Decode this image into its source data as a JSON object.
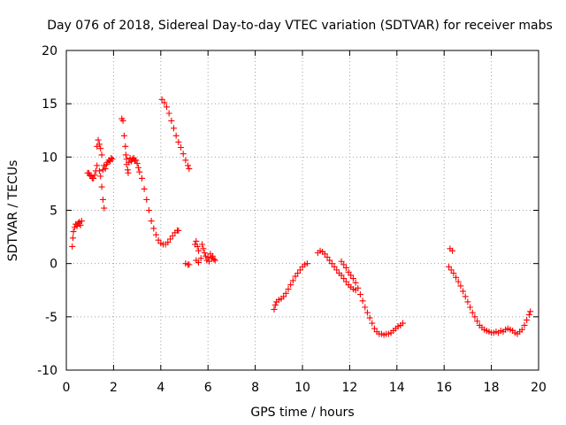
{
  "chart_data": {
    "type": "scatter",
    "title": "Day 076 of 2018, Sidereal Day-to-day VTEC variation (SDTVAR) for receiver mabs",
    "xlabel": "GPS time / hours",
    "ylabel": "SDTVAR / TECUs",
    "xlim": [
      0,
      20
    ],
    "ylim": [
      -10,
      20
    ],
    "xticks": [
      0,
      2,
      4,
      6,
      8,
      10,
      12,
      14,
      16,
      18,
      20
    ],
    "yticks": [
      -10,
      -5,
      0,
      5,
      10,
      15,
      20
    ],
    "grid": true,
    "marker": "+",
    "color": "#ff0000",
    "series": [
      {
        "name": "seg1",
        "points": [
          [
            0.25,
            1.6
          ],
          [
            0.28,
            2.4
          ],
          [
            0.3,
            3.0
          ],
          [
            0.35,
            3.4
          ],
          [
            0.4,
            3.7
          ],
          [
            0.45,
            3.5
          ],
          [
            0.5,
            3.8
          ],
          [
            0.55,
            3.9
          ],
          [
            0.6,
            3.6
          ],
          [
            0.65,
            4.0
          ]
        ]
      },
      {
        "name": "seg2",
        "points": [
          [
            0.9,
            8.5
          ],
          [
            0.95,
            8.5
          ],
          [
            1.0,
            8.3
          ],
          [
            1.05,
            8.2
          ],
          [
            1.1,
            8.0
          ],
          [
            1.15,
            8.0
          ],
          [
            1.2,
            8.3
          ],
          [
            1.25,
            8.7
          ],
          [
            1.3,
            9.2
          ],
          [
            1.3,
            11.0
          ],
          [
            1.35,
            11.6
          ],
          [
            1.4,
            11.2
          ],
          [
            1.45,
            10.8
          ],
          [
            1.5,
            10.2
          ],
          [
            1.4,
            8.7
          ],
          [
            1.45,
            8.2
          ],
          [
            1.5,
            7.2
          ],
          [
            1.55,
            6.0
          ],
          [
            1.6,
            5.2
          ],
          [
            1.55,
            8.8
          ],
          [
            1.6,
            9.2
          ],
          [
            1.65,
            8.9
          ],
          [
            1.7,
            9.3
          ],
          [
            1.75,
            9.5
          ],
          [
            1.8,
            9.7
          ],
          [
            1.85,
            9.6
          ],
          [
            1.9,
            9.9
          ],
          [
            1.95,
            9.8
          ]
        ]
      },
      {
        "name": "seg3",
        "points": [
          [
            2.35,
            13.6
          ],
          [
            2.4,
            13.4
          ],
          [
            2.45,
            12.0
          ],
          [
            2.5,
            11.0
          ],
          [
            2.52,
            10.2
          ],
          [
            2.55,
            9.3
          ],
          [
            2.6,
            8.8
          ],
          [
            2.62,
            8.5
          ],
          [
            2.55,
            9.8
          ],
          [
            2.65,
            9.5
          ],
          [
            2.7,
            9.9
          ],
          [
            2.75,
            9.6
          ],
          [
            2.8,
            9.8
          ],
          [
            2.85,
            9.9
          ],
          [
            2.9,
            9.7
          ],
          [
            2.95,
            9.7
          ],
          [
            3.0,
            9.4
          ],
          [
            3.05,
            9.0
          ],
          [
            3.1,
            8.6
          ],
          [
            3.2,
            8.0
          ],
          [
            3.3,
            7.0
          ],
          [
            3.4,
            6.0
          ],
          [
            3.5,
            5.0
          ],
          [
            3.6,
            4.0
          ],
          [
            3.7,
            3.3
          ],
          [
            3.8,
            2.7
          ],
          [
            3.9,
            2.2
          ],
          [
            4.0,
            1.9
          ],
          [
            4.1,
            1.8
          ],
          [
            4.2,
            1.8
          ],
          [
            4.3,
            2.0
          ],
          [
            4.4,
            2.3
          ],
          [
            4.5,
            2.6
          ],
          [
            4.6,
            2.9
          ],
          [
            4.7,
            3.1
          ],
          [
            4.75,
            3.1
          ]
        ]
      },
      {
        "name": "seg4",
        "points": [
          [
            4.05,
            15.4
          ],
          [
            4.15,
            15.1
          ],
          [
            4.25,
            14.7
          ],
          [
            4.35,
            14.1
          ],
          [
            4.45,
            13.4
          ],
          [
            4.55,
            12.7
          ],
          [
            4.65,
            12.0
          ],
          [
            4.75,
            11.4
          ],
          [
            4.85,
            10.9
          ],
          [
            4.95,
            10.3
          ],
          [
            5.05,
            9.7
          ],
          [
            5.15,
            9.2
          ],
          [
            5.2,
            8.9
          ]
        ]
      },
      {
        "name": "seg5",
        "points": [
          [
            5.05,
            0.0
          ],
          [
            5.15,
            -0.1
          ],
          [
            5.2,
            -0.1
          ],
          [
            5.45,
            1.8
          ],
          [
            5.5,
            2.1
          ],
          [
            5.55,
            1.6
          ],
          [
            5.6,
            1.2
          ],
          [
            5.5,
            0.3
          ],
          [
            5.6,
            0.1
          ],
          [
            5.7,
            0.5
          ],
          [
            5.75,
            1.8
          ],
          [
            5.8,
            1.4
          ],
          [
            5.85,
            1.0
          ],
          [
            5.9,
            0.7
          ],
          [
            5.95,
            0.3
          ],
          [
            6.0,
            0.6
          ],
          [
            6.05,
            0.2
          ],
          [
            6.1,
            0.9
          ],
          [
            6.15,
            0.5
          ],
          [
            6.2,
            0.7
          ],
          [
            6.25,
            0.4
          ],
          [
            6.3,
            0.3
          ]
        ]
      },
      {
        "name": "seg6",
        "points": [
          [
            8.8,
            -4.3
          ],
          [
            8.85,
            -3.9
          ],
          [
            8.9,
            -3.6
          ],
          [
            9.0,
            -3.4
          ],
          [
            9.1,
            -3.3
          ],
          [
            9.2,
            -3.1
          ],
          [
            9.3,
            -2.8
          ],
          [
            9.4,
            -2.4
          ],
          [
            9.5,
            -2.0
          ],
          [
            9.6,
            -1.6
          ],
          [
            9.7,
            -1.2
          ],
          [
            9.8,
            -0.9
          ],
          [
            9.9,
            -0.6
          ],
          [
            10.0,
            -0.3
          ],
          [
            10.1,
            -0.1
          ],
          [
            10.2,
            0.0
          ]
        ]
      },
      {
        "name": "seg7",
        "points": [
          [
            10.65,
            1.0
          ],
          [
            10.75,
            1.2
          ],
          [
            10.85,
            1.1
          ],
          [
            10.95,
            0.9
          ],
          [
            11.05,
            0.6
          ],
          [
            11.15,
            0.3
          ],
          [
            11.25,
            0.0
          ],
          [
            11.35,
            -0.3
          ],
          [
            11.45,
            -0.6
          ],
          [
            11.55,
            -0.9
          ],
          [
            11.65,
            -1.1
          ],
          [
            11.75,
            -1.4
          ],
          [
            11.85,
            -1.7
          ],
          [
            11.95,
            -2.0
          ],
          [
            12.05,
            -2.2
          ],
          [
            12.15,
            -2.4
          ],
          [
            12.25,
            -2.5
          ]
        ]
      },
      {
        "name": "seg8",
        "points": [
          [
            11.65,
            0.2
          ],
          [
            11.75,
            -0.1
          ],
          [
            11.85,
            -0.4
          ],
          [
            11.95,
            -0.8
          ],
          [
            12.05,
            -1.1
          ],
          [
            12.15,
            -1.4
          ],
          [
            12.25,
            -1.8
          ],
          [
            12.35,
            -2.3
          ],
          [
            12.45,
            -2.9
          ],
          [
            12.55,
            -3.5
          ],
          [
            12.65,
            -4.1
          ],
          [
            12.75,
            -4.6
          ],
          [
            12.85,
            -5.1
          ],
          [
            12.95,
            -5.6
          ],
          [
            13.05,
            -6.1
          ],
          [
            13.15,
            -6.4
          ],
          [
            13.25,
            -6.6
          ],
          [
            13.35,
            -6.6
          ],
          [
            13.45,
            -6.7
          ],
          [
            13.55,
            -6.6
          ],
          [
            13.65,
            -6.6
          ],
          [
            13.75,
            -6.5
          ],
          [
            13.85,
            -6.3
          ],
          [
            13.95,
            -6.1
          ],
          [
            14.05,
            -5.9
          ],
          [
            14.15,
            -5.8
          ],
          [
            14.25,
            -5.6
          ]
        ]
      },
      {
        "name": "seg9",
        "points": [
          [
            16.25,
            1.4
          ],
          [
            16.35,
            1.2
          ],
          [
            16.2,
            -0.3
          ],
          [
            16.3,
            -0.6
          ],
          [
            16.4,
            -0.9
          ],
          [
            16.5,
            -1.3
          ],
          [
            16.6,
            -1.7
          ],
          [
            16.7,
            -2.1
          ],
          [
            16.8,
            -2.6
          ],
          [
            16.9,
            -3.1
          ],
          [
            17.0,
            -3.6
          ],
          [
            17.1,
            -4.1
          ],
          [
            17.2,
            -4.6
          ],
          [
            17.3,
            -5.0
          ],
          [
            17.4,
            -5.4
          ],
          [
            17.5,
            -5.8
          ],
          [
            17.6,
            -6.0
          ],
          [
            17.7,
            -6.2
          ],
          [
            17.8,
            -6.3
          ],
          [
            17.9,
            -6.4
          ],
          [
            18.0,
            -6.5
          ],
          [
            18.1,
            -6.5
          ],
          [
            18.2,
            -6.4
          ],
          [
            18.3,
            -6.5
          ],
          [
            18.4,
            -6.3
          ],
          [
            18.5,
            -6.4
          ],
          [
            18.6,
            -6.2
          ],
          [
            18.7,
            -6.1
          ],
          [
            18.8,
            -6.2
          ],
          [
            18.9,
            -6.3
          ],
          [
            19.0,
            -6.5
          ],
          [
            19.1,
            -6.6
          ],
          [
            19.2,
            -6.4
          ],
          [
            19.3,
            -6.2
          ],
          [
            19.4,
            -5.8
          ],
          [
            19.5,
            -5.3
          ],
          [
            19.6,
            -4.8
          ],
          [
            19.65,
            -4.5
          ]
        ]
      }
    ]
  }
}
